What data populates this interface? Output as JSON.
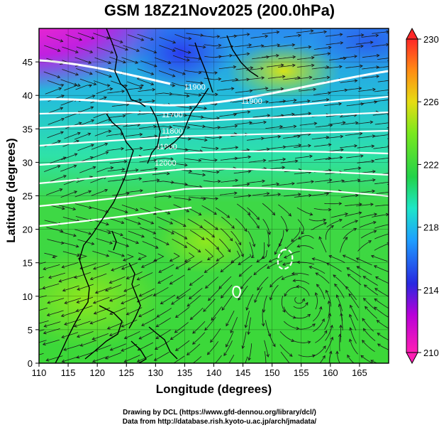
{
  "title": "GSM 18Z21Nov2025 (200.0hPa)",
  "x_axis_label": "Longitude (degrees)",
  "y_axis_label": "Latitude  (degrees)",
  "credits": [
    "Drawing by DCL (https://www.gfd-dennou.org/library/dcl/)",
    "Data from http://database.rish.kyoto-u.ac.jp/arch/jmadata/"
  ],
  "map": {
    "lon_range": [
      110,
      170
    ],
    "lat_range": [
      0,
      50
    ],
    "x_ticks": [
      "110",
      "115",
      "120",
      "125",
      "130",
      "135",
      "140",
      "145",
      "150",
      "155",
      "160",
      "165"
    ],
    "y_ticks": [
      "0",
      "5",
      "10",
      "15",
      "20",
      "25",
      "30",
      "35",
      "40",
      "45"
    ]
  },
  "colorbar": {
    "range": [
      210,
      230
    ],
    "tick_labels": [
      "210",
      "214",
      "218",
      "222",
      "226",
      "230"
    ],
    "colors": [
      "#ff1fb4",
      "#b800d8",
      "#2828e0",
      "#1ea0ff",
      "#1ee6c8",
      "#22d24a",
      "#7ae81e",
      "#e6dc14",
      "#ff8c14",
      "#ff2828"
    ]
  },
  "contour_labels": [
    "11900",
    "11900",
    "11700",
    "11800",
    "11900",
    "12000"
  ],
  "colors": {
    "contour": "#ffffff",
    "streamline": "#1a1a1a",
    "coastline": "#000000",
    "grid": "#000000"
  }
}
